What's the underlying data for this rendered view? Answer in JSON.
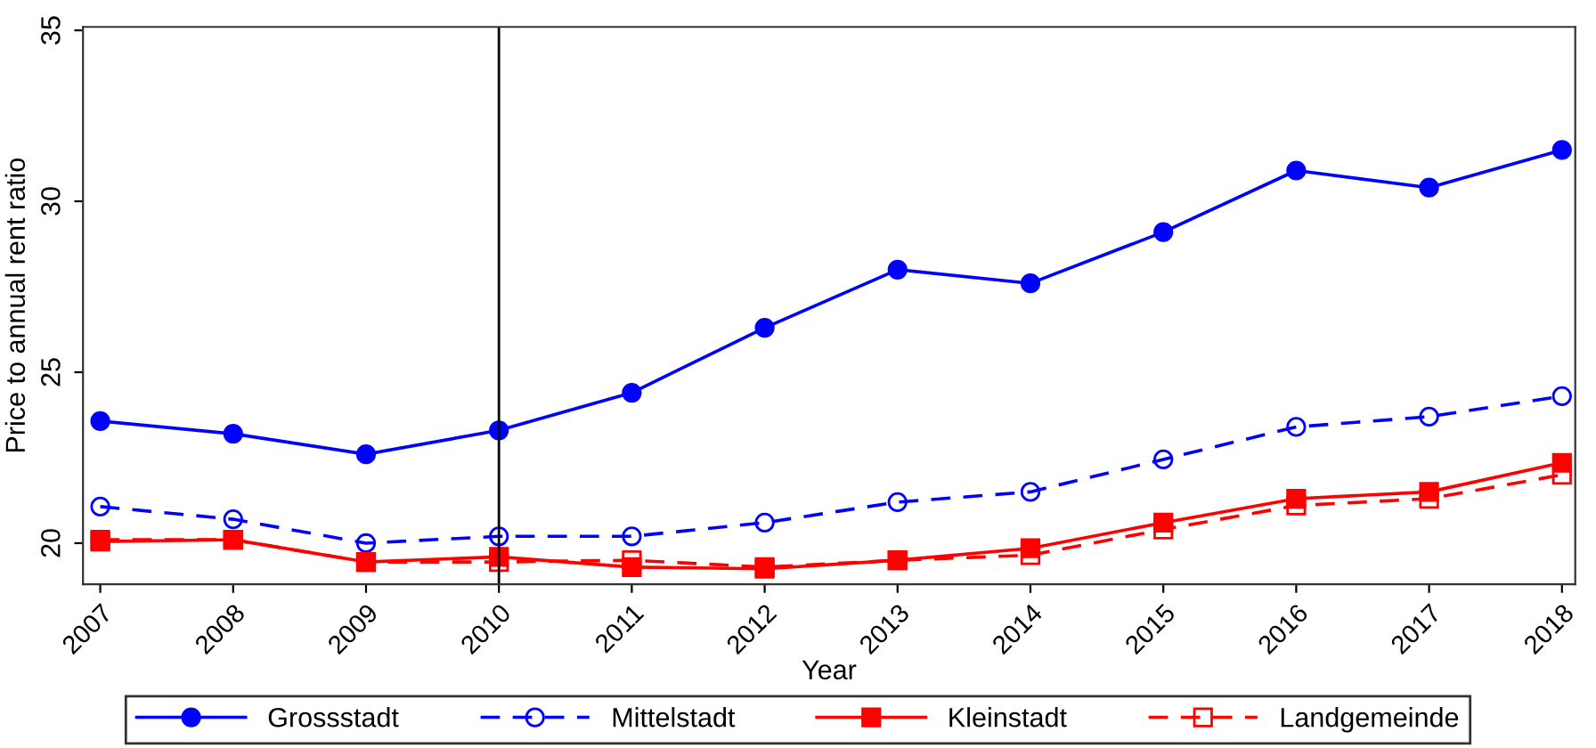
{
  "chart_data": {
    "type": "line",
    "xlabel": "Year",
    "ylabel": "Price to annual rent ratio",
    "x": [
      2007,
      2008,
      2009,
      2010,
      2011,
      2012,
      2013,
      2014,
      2015,
      2016,
      2017,
      2018
    ],
    "series": [
      {
        "name": "Grossstadt",
        "color": "#0000ff",
        "marker": "circle",
        "line_style": "solid",
        "values": [
          23.57,
          23.2,
          22.6,
          23.3,
          24.4,
          26.3,
          28.0,
          27.6,
          29.1,
          30.9,
          30.4,
          31.5
        ]
      },
      {
        "name": "Mittelstadt",
        "color": "#0000ff",
        "marker": "circle",
        "line_style": "dashed",
        "values": [
          21.07,
          20.7,
          20.0,
          20.2,
          20.2,
          20.6,
          21.2,
          21.5,
          22.45,
          23.4,
          23.7,
          24.3
        ]
      },
      {
        "name": "Kleinstadt",
        "color": "#ff0000",
        "marker": "square",
        "line_style": "solid",
        "values": [
          20.05,
          20.1,
          19.45,
          19.6,
          19.3,
          19.25,
          19.5,
          19.85,
          20.6,
          21.3,
          21.5,
          22.35
        ]
      },
      {
        "name": "Landgemeinde",
        "color": "#ff0000",
        "marker": "square",
        "line_style": "dashed",
        "values": [
          20.1,
          20.1,
          19.45,
          19.45,
          19.5,
          19.3,
          19.5,
          19.65,
          20.4,
          21.1,
          21.3,
          22.0
        ]
      }
    ],
    "xlim": [
      2006.87,
      2018.1
    ],
    "xticks": [
      2007,
      2008,
      2009,
      2010,
      2011,
      2012,
      2013,
      2014,
      2015,
      2016,
      2017,
      2018
    ],
    "ylim": [
      18.8,
      35.1
    ],
    "yticks": [
      20,
      25,
      30,
      35
    ],
    "ref_lines": [
      {
        "axis": "x",
        "value": 2010,
        "color": "#000000",
        "line_style": "solid"
      }
    ],
    "grid": false,
    "legend": "bottom"
  }
}
